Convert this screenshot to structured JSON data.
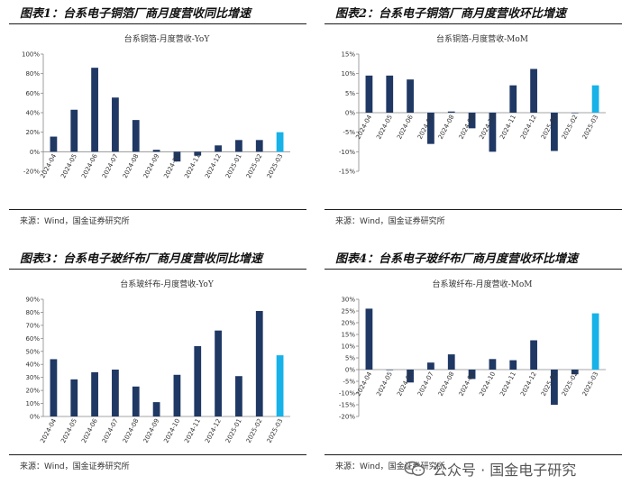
{
  "panels": [
    {
      "title": "图表1：台系电子铜箔厂商月度营收同比增速",
      "source": "来源：Wind，国金证券研究所",
      "chart_data": {
        "type": "bar",
        "title": "台系铜箔-月度营收-YoY",
        "categories": [
          "2024-04",
          "2024-05",
          "2024-06",
          "2024-07",
          "2024-08",
          "2024-09",
          "2024-10",
          "2024-11",
          "2024-12",
          "2025-01",
          "2025-02",
          "2025-03"
        ],
        "values": [
          15.5,
          43,
          86,
          55.5,
          32.5,
          2,
          -10,
          -4,
          6.5,
          12,
          12,
          20
        ],
        "ylim": [
          -20,
          100
        ],
        "yticks": [
          -20,
          0,
          20,
          40,
          60,
          80,
          100
        ],
        "yformat": "percent",
        "grid": false,
        "highlight_index": 11,
        "colors": {
          "bar": "#1f3864",
          "highlight": "#16b2e8"
        }
      }
    },
    {
      "title": "图表2：台系电子铜箔厂商月度营收环比增速",
      "source": "来源：Wind，国金证券研究所",
      "chart_data": {
        "type": "bar",
        "title": "台系铜箔-月度营收-MoM",
        "categories": [
          "2024-04",
          "2024-05",
          "2024-06",
          "2024-07",
          "2024-08",
          "2024-09",
          "2024-10",
          "2024-11",
          "2024-12",
          "2025-01",
          "2025-02",
          "2025-03"
        ],
        "values": [
          9.5,
          9.5,
          8.5,
          -8,
          0.3,
          -4,
          -10,
          7,
          11.2,
          -9.8,
          0,
          7
        ],
        "ylim": [
          -15,
          15
        ],
        "yticks": [
          -15,
          -10,
          -5,
          0,
          5,
          10,
          15
        ],
        "yformat": "percent",
        "grid": false,
        "highlight_index": 11,
        "colors": {
          "bar": "#1f3864",
          "highlight": "#16b2e8"
        }
      }
    },
    {
      "title": "图表3：台系电子玻纤布厂商月度营收同比增速",
      "source": "来源：Wind，国金证券研究所",
      "chart_data": {
        "type": "bar",
        "title": "台系玻纤布-月度营收-YoY",
        "categories": [
          "2024-04",
          "2024-05",
          "2024-06",
          "2024-07",
          "2024-08",
          "2024-09",
          "2024-10",
          "2024-11",
          "2024-12",
          "2025-01",
          "2025-02",
          "2025-03"
        ],
        "values": [
          44,
          28.5,
          34,
          36,
          23,
          11,
          32,
          54,
          66,
          31,
          81,
          47
        ],
        "ylim": [
          0,
          90
        ],
        "yticks": [
          0,
          10,
          20,
          30,
          40,
          50,
          60,
          70,
          80,
          90
        ],
        "yformat": "percent",
        "grid": false,
        "highlight_index": 11,
        "colors": {
          "bar": "#1f3864",
          "highlight": "#16b2e8"
        }
      }
    },
    {
      "title": "图表4：台系电子玻纤布厂商月度营收环比增速",
      "source": "来源：Wind，国金证券研究所",
      "chart_data": {
        "type": "bar",
        "title": "台系玻纤布-月度营收-MoM",
        "categories": [
          "2024-04",
          "2024-05",
          "2024-06",
          "2024-07",
          "2024-08",
          "2024-09",
          "2024-10",
          "2024-11",
          "2024-12",
          "2025-01",
          "2025-02",
          "2025-03"
        ],
        "values": [
          26,
          0,
          -5.5,
          3,
          6.5,
          -4,
          4.5,
          4,
          12.5,
          -15,
          -2,
          24
        ],
        "ylim": [
          -20,
          30
        ],
        "yticks": [
          -20,
          -15,
          -10,
          -5,
          0,
          5,
          10,
          15,
          20,
          25,
          30
        ],
        "yformat": "percent",
        "grid": false,
        "highlight_index": 11,
        "colors": {
          "bar": "#1f3864",
          "highlight": "#16b2e8"
        }
      }
    }
  ],
  "watermark": {
    "text": "公众号 · 国金电子研究",
    "icon": "wechat-icon"
  }
}
